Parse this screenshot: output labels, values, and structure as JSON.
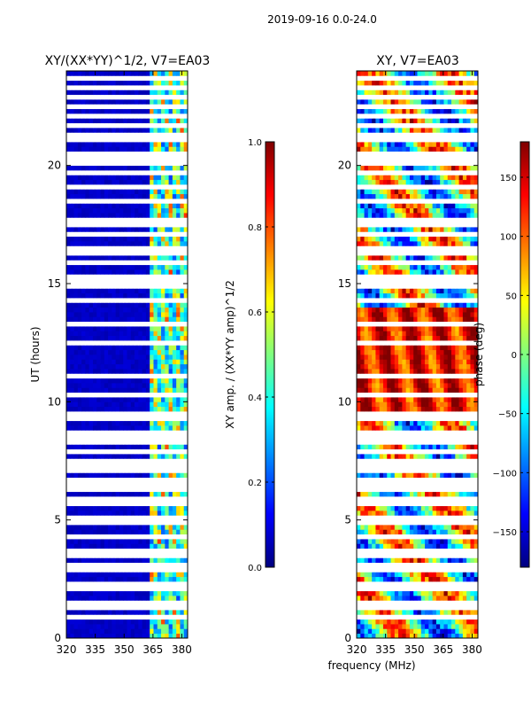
{
  "figure": {
    "suptitle": "2019-09-16 0.0-24.0",
    "xlabel": "frequency (MHz)"
  },
  "colors": {
    "jet": [
      "#00007f",
      "#0000ff",
      "#007fff",
      "#00ffff",
      "#7fff7f",
      "#ffff00",
      "#ff7f00",
      "#ff0000",
      "#7f0000"
    ],
    "background": "#ffffff"
  },
  "chart_data": [
    {
      "type": "heatmap",
      "title": "XY/(XX*YY)^1/2, V7=EA03",
      "xlabel": "",
      "ylabel": "UT (hours)",
      "xlim": [
        320,
        383
      ],
      "ylim": [
        0,
        24
      ],
      "xticks": [
        320,
        335,
        350,
        365,
        380
      ],
      "yticks": [
        0,
        5,
        10,
        15,
        20
      ],
      "colorbar": {
        "label": "XY amp. / (XX*YY amp)^1/2",
        "range": [
          0.0,
          1.0
        ],
        "ticks": [
          "0.0",
          "0.2",
          "0.4",
          "0.6",
          "0.8",
          "1.0"
        ]
      },
      "description_values": {
        "low_freq_region_mean": 0.05,
        "high_freq_region_range": [
          0.3,
          0.7
        ],
        "high_freq_region_mhz": [
          363,
          382
        ]
      }
    },
    {
      "type": "heatmap",
      "title": "XY, V7=EA03",
      "xlabel": "",
      "ylabel": "",
      "xlim": [
        320,
        383
      ],
      "ylim": [
        0,
        24
      ],
      "xticks": [
        320,
        335,
        350,
        365,
        380
      ],
      "yticks": [
        0,
        5,
        10,
        15,
        20
      ],
      "colorbar": {
        "label": "phase (deg)",
        "range": [
          -180,
          180
        ],
        "ticks": [
          "150",
          "100",
          "50",
          "0",
          "−50",
          "−100",
          "−150"
        ]
      }
    }
  ],
  "flagged_hours": [
    0.9,
    1.2,
    1.5,
    2.0,
    2.3,
    2.9,
    3.0,
    3.4,
    3.7,
    4.2,
    4.8,
    4.85,
    5.1,
    5.6,
    5.7,
    5.9,
    6.2,
    6.5,
    6.6,
    7.0,
    7.3,
    7.5,
    7.9,
    8.3,
    8.5,
    8.7,
    9.3,
    9.4,
    9.5,
    10.2,
    11.0,
    12.4,
    13.3,
    14.2,
    14.8,
    15.1,
    15.3,
    15.8,
    16.2,
    16.5,
    17.1,
    17.5,
    17.7,
    18.5,
    19.0,
    19.6,
    20.0,
    20.3,
    20.5,
    21.1,
    21.3,
    21.6,
    22.0,
    22.4,
    22.9,
    23.3,
    23.6
  ]
}
